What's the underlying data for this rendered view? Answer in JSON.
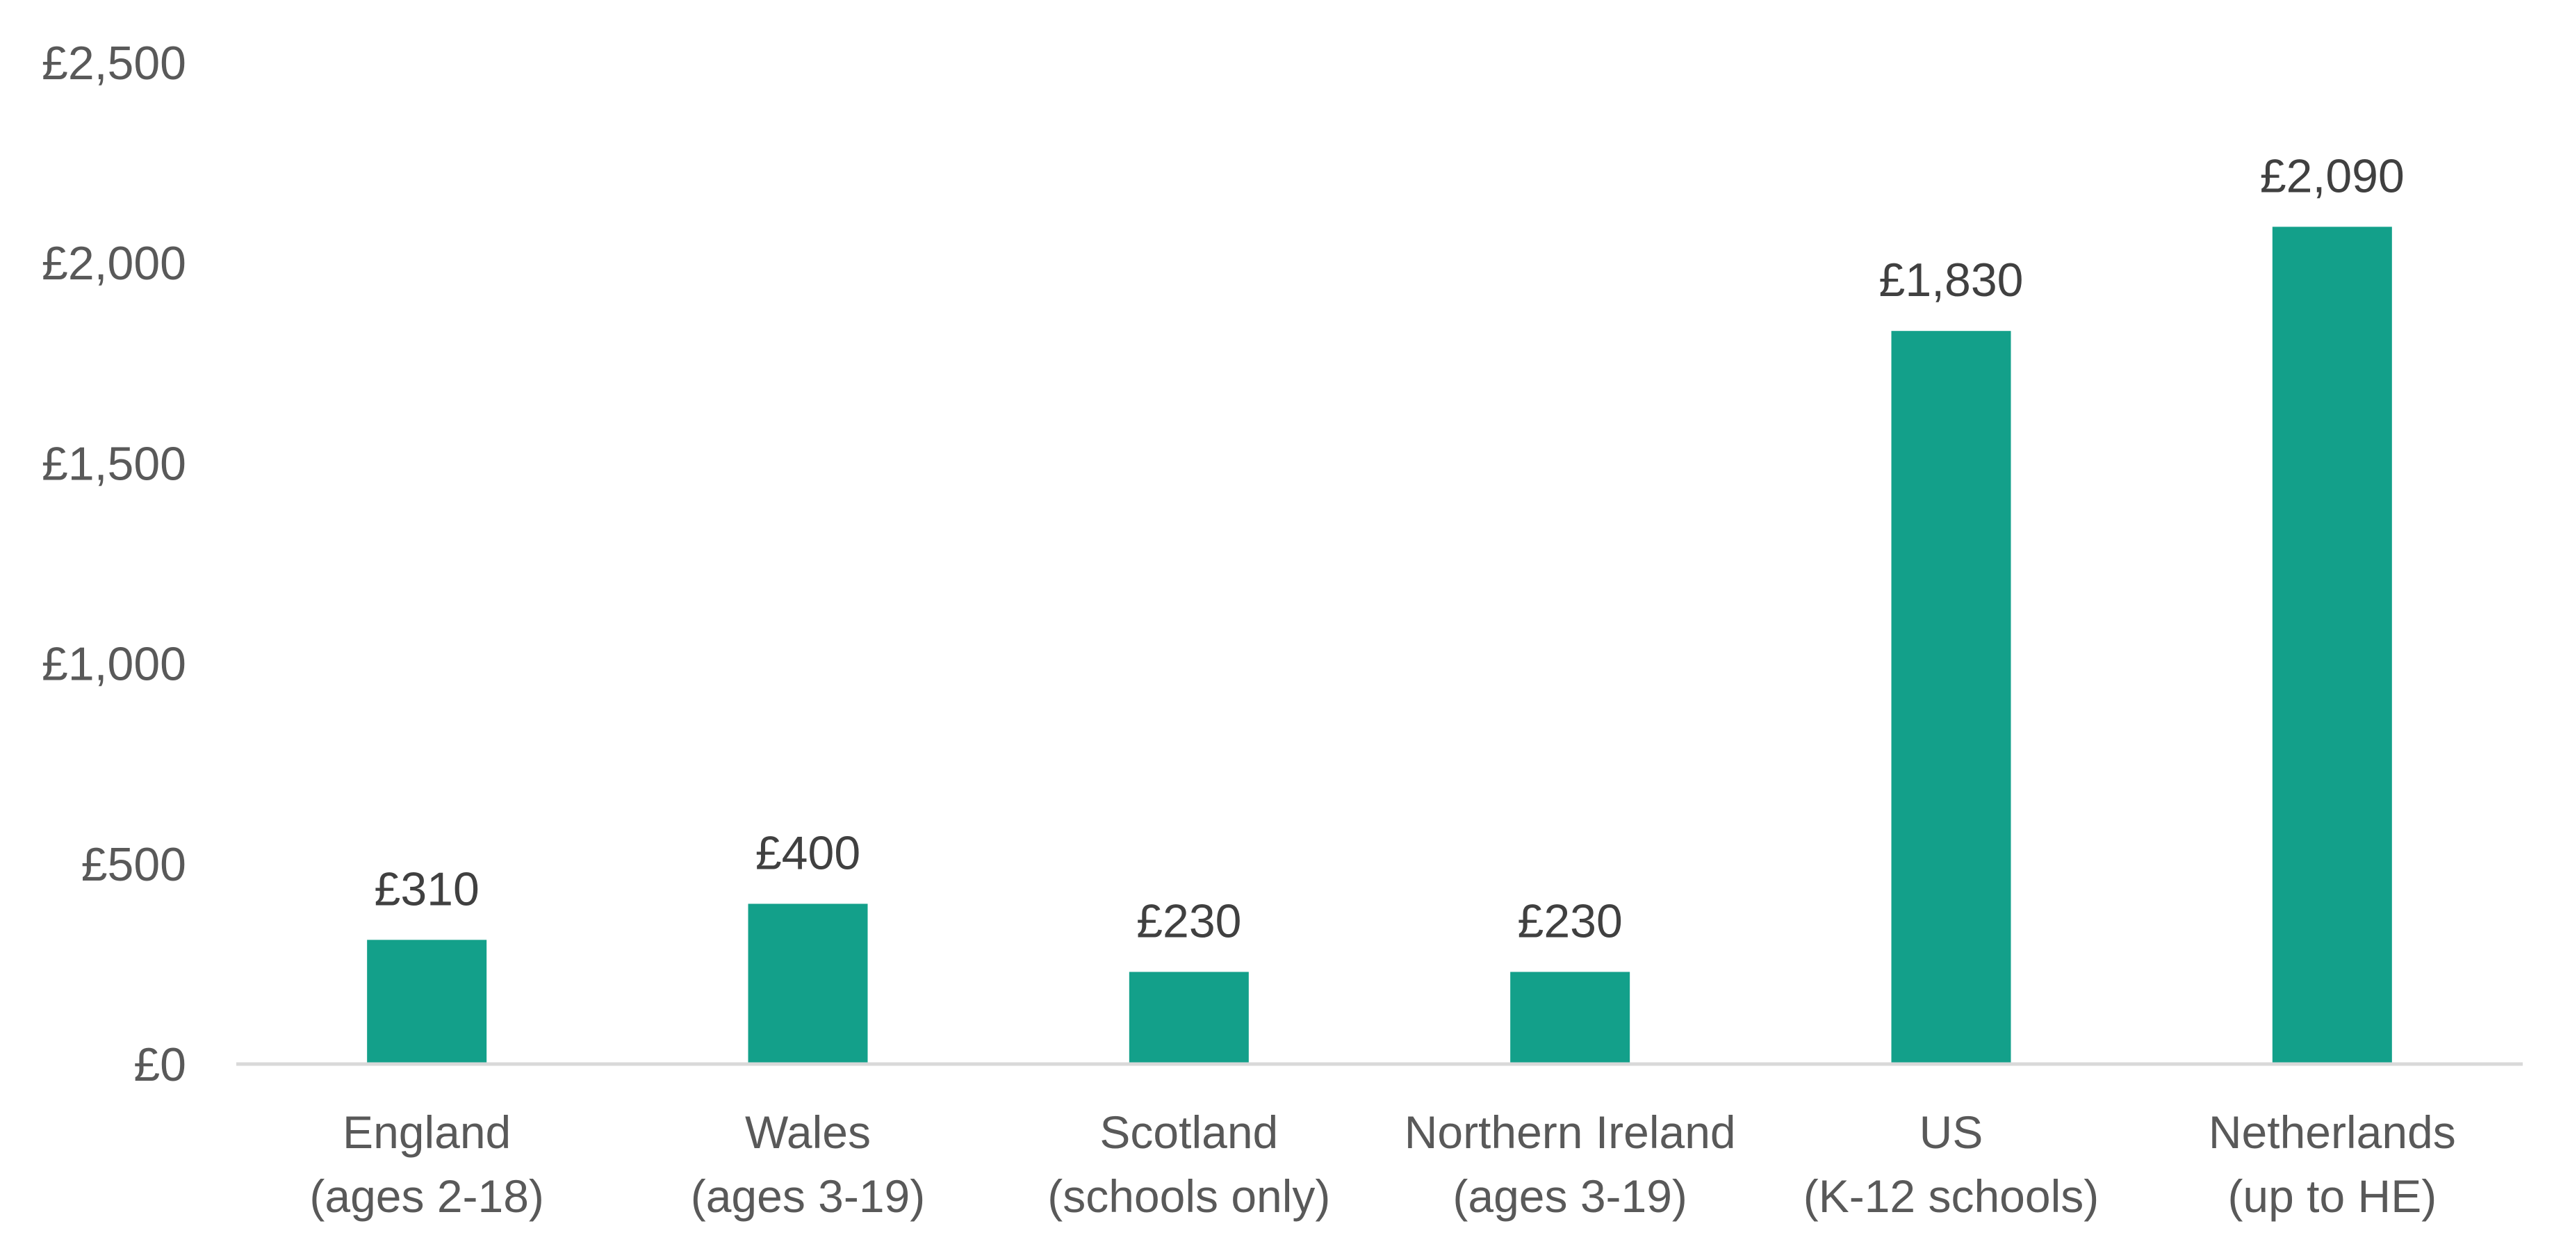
{
  "chart_data": {
    "type": "bar",
    "categories": [
      [
        "England",
        "(ages 2-18)"
      ],
      [
        "Wales",
        "(ages 3-19)"
      ],
      [
        "Scotland",
        "(schools only)"
      ],
      [
        "Northern Ireland",
        "(ages 3-19)"
      ],
      [
        "US",
        "(K-12 schools)"
      ],
      [
        "Netherlands",
        "(up to HE)"
      ]
    ],
    "values": [
      310,
      400,
      230,
      230,
      1830,
      2090
    ],
    "data_labels": [
      "£310",
      "£400",
      "£230",
      "£230",
      "£1,830",
      "£2,090"
    ],
    "title": "",
    "xlabel": "",
    "ylabel": "",
    "ylim": [
      0,
      2500
    ],
    "yticks": [
      0,
      500,
      1000,
      1500,
      2000,
      2500
    ],
    "ytick_labels": [
      "£0",
      "£500",
      "£1,000",
      "£1,500",
      "£2,000",
      "£2,500"
    ],
    "grid": false,
    "legend": "none",
    "colors": {
      "bar": "#13A08A",
      "axis": "#D9D9D9"
    }
  }
}
